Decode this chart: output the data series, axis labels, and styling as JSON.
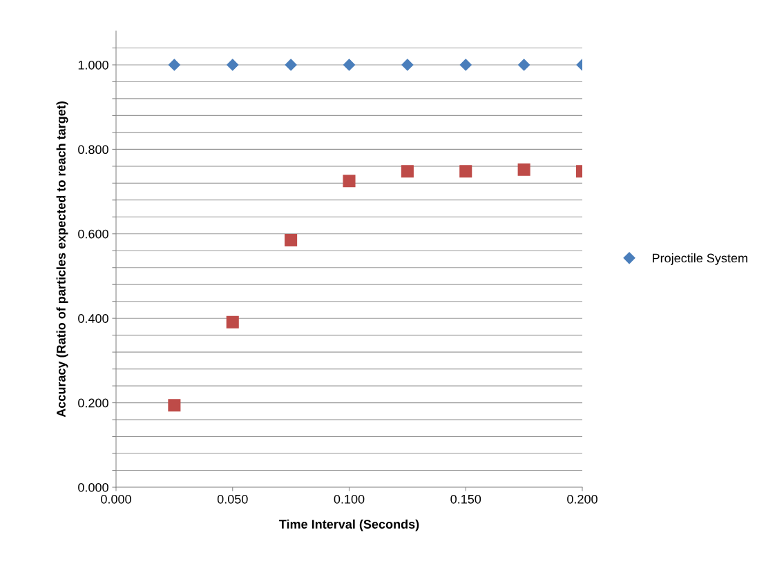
{
  "chart_data": {
    "type": "scatter",
    "xlabel": "Time Interval (Seconds)",
    "ylabel": "Accuracy (Ratio of particles expected to reach target)",
    "x": [
      0.025,
      0.05,
      0.075,
      0.1,
      0.125,
      0.15,
      0.175,
      0.2
    ],
    "series": [
      {
        "name": "Projectile System",
        "color": "#4a7ebb",
        "marker": "diamond",
        "values": [
          1.0,
          1.0,
          1.0,
          1.0,
          1.0,
          1.0,
          1.0,
          1.0
        ]
      },
      {
        "color": "#be4b48",
        "marker": "square",
        "values": [
          0.194,
          0.391,
          0.585,
          0.725,
          0.748,
          0.748,
          0.752,
          0.748
        ]
      }
    ],
    "xlim": [
      0,
      0.2
    ],
    "xticks": [
      {
        "value": 0,
        "label": "0.000"
      },
      {
        "value": 0.05,
        "label": "0.050"
      },
      {
        "value": 0.1,
        "label": "0.100"
      },
      {
        "value": 0.15,
        "label": "0.150"
      },
      {
        "value": 0.2,
        "label": "0.200"
      }
    ],
    "ylim": [
      0,
      1.08
    ],
    "yticks": [
      {
        "value": 0,
        "label": "0.000"
      },
      {
        "value": 0.04,
        "label": null
      },
      {
        "value": 0.08,
        "label": null
      },
      {
        "value": 0.12,
        "label": null
      },
      {
        "value": 0.16,
        "label": null
      },
      {
        "value": 0.2,
        "label": "0.200"
      },
      {
        "value": 0.24,
        "label": null
      },
      {
        "value": 0.28,
        "label": null
      },
      {
        "value": 0.32,
        "label": null
      },
      {
        "value": 0.36,
        "label": null
      },
      {
        "value": 0.4,
        "label": "0.400"
      },
      {
        "value": 0.44,
        "label": null
      },
      {
        "value": 0.48,
        "label": null
      },
      {
        "value": 0.52,
        "label": null
      },
      {
        "value": 0.56,
        "label": null
      },
      {
        "value": 0.6,
        "label": "0.600"
      },
      {
        "value": 0.64,
        "label": null
      },
      {
        "value": 0.68,
        "label": null
      },
      {
        "value": 0.72,
        "label": null
      },
      {
        "value": 0.76,
        "label": null
      },
      {
        "value": 0.8,
        "label": "0.800"
      },
      {
        "value": 0.84,
        "label": null
      },
      {
        "value": 0.88,
        "label": null
      },
      {
        "value": 0.92,
        "label": null
      },
      {
        "value": 0.96,
        "label": null
      },
      {
        "value": 1.0,
        "label": "1.000"
      },
      {
        "value": 1.04,
        "label": null
      }
    ],
    "grid": "y",
    "legend": "right"
  }
}
